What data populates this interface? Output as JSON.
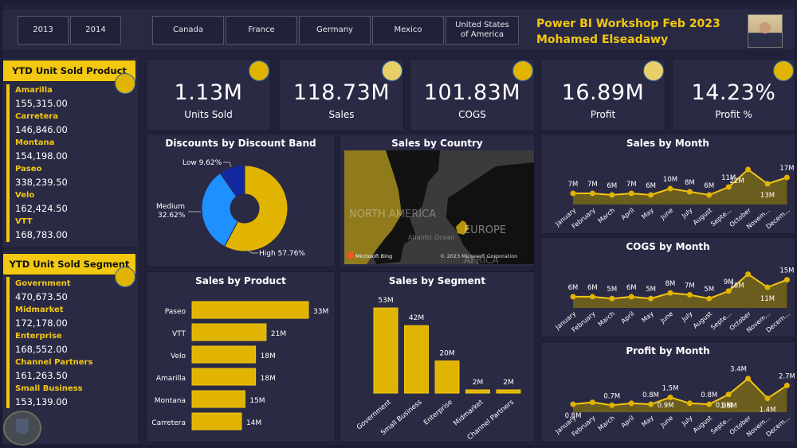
{
  "slicers": {
    "years": [
      "2013",
      "2014"
    ],
    "countries": [
      "Canada",
      "France",
      "Germany",
      "Mexico",
      "United States of America"
    ]
  },
  "header": {
    "title_line1": "Power BI Workshop Feb 2023",
    "title_line2": "Mohamed Elseadawy"
  },
  "colors": {
    "accent": "#f2c811",
    "accent_light": "#e8cf6a",
    "background": "#22213a",
    "card": "#2b2a45",
    "medium_blue": "#1e90ff",
    "low_blue": "#1328a0"
  },
  "kpis": [
    {
      "value": "1.13M",
      "label": "Units Sold"
    },
    {
      "value": "118.73M",
      "label": "Sales"
    },
    {
      "value": "101.83M",
      "label": "COGS"
    },
    {
      "value": "16.89M",
      "label": "Profit"
    },
    {
      "value": "14.23%",
      "label": "Profit %"
    }
  ],
  "ytd_product": {
    "title": "YTD Unit Sold Product",
    "items": [
      {
        "name": "Amarilla",
        "value": "155,315.00"
      },
      {
        "name": "Carretera",
        "value": "146,846.00"
      },
      {
        "name": "Montana",
        "value": "154,198.00"
      },
      {
        "name": "Paseo",
        "value": "338,239.50"
      },
      {
        "name": "Velo",
        "value": "162,424.50"
      },
      {
        "name": "VTT",
        "value": "168,783.00"
      }
    ]
  },
  "ytd_segment": {
    "title": "YTD Unit Sold Segment",
    "items": [
      {
        "name": "Government",
        "value": "470,673.50"
      },
      {
        "name": "Midmarket",
        "value": "172,178.00"
      },
      {
        "name": "Enterprise",
        "value": "168,552.00"
      },
      {
        "name": "Channel Partners",
        "value": "161,263.50"
      },
      {
        "name": "Small Business",
        "value": "153,139.00"
      }
    ]
  },
  "map": {
    "title": "Sales by Country",
    "labels": [
      "NORTH AMERICA",
      "EUROPE",
      "Atlantic Ocean",
      "AFRICA"
    ],
    "attribution_left": "Microsoft Bing",
    "attribution_right": "© 2023 Microsoft Corporation"
  },
  "chart_data": [
    {
      "type": "pie",
      "title": "Discounts by Discount Band",
      "donut": true,
      "slices": [
        {
          "label": "High",
          "value": 57.76,
          "display": "High 57.76%",
          "color": "#e0b400"
        },
        {
          "label": "Medium",
          "value": 32.62,
          "display": "Medium 32.62%",
          "color": "#1e90ff"
        },
        {
          "label": "Low",
          "value": 9.62,
          "display": "Low 9.62%",
          "color": "#1328a0"
        }
      ]
    },
    {
      "type": "bar",
      "orientation": "horizontal",
      "title": "Sales by Product",
      "categories": [
        "Paseo",
        "VTT",
        "Velo",
        "Amarilla",
        "Montana",
        "Carretera"
      ],
      "values": [
        33,
        21,
        18,
        18,
        15,
        14
      ],
      "labels": [
        "33M",
        "21M",
        "18M",
        "18M",
        "15M",
        "14M"
      ],
      "unit": "M"
    },
    {
      "type": "bar",
      "orientation": "vertical",
      "title": "Sales by Segment",
      "categories": [
        "Government",
        "Small Business",
        "Enterprise",
        "Midmarket",
        "Channel Partners"
      ],
      "values": [
        53,
        42,
        20,
        2,
        2
      ],
      "labels": [
        "53M",
        "42M",
        "20M",
        "2M",
        "2M"
      ],
      "unit": "M"
    },
    {
      "type": "area",
      "title": "Sales by Month",
      "categories": [
        "January",
        "February",
        "March",
        "April",
        "May",
        "June",
        "July",
        "August",
        "Septe...",
        "October",
        "Novem...",
        "Decem..."
      ],
      "values": [
        7,
        7,
        6,
        7,
        6,
        10,
        8,
        6,
        11,
        22,
        13,
        17
      ],
      "labels": [
        "7M",
        "7M",
        "6M",
        "7M",
        "6M",
        "10M",
        "8M",
        "6M",
        "11M",
        "22M",
        "13M",
        "17M"
      ]
    },
    {
      "type": "area",
      "title": "COGS by Month",
      "categories": [
        "January",
        "February",
        "March",
        "April",
        "May",
        "June",
        "July",
        "August",
        "Septe...",
        "October",
        "Novem...",
        "Decem..."
      ],
      "values": [
        6,
        6,
        5,
        6,
        5,
        8,
        7,
        5,
        9,
        18,
        11,
        15
      ],
      "labels": [
        "6M",
        "6M",
        "5M",
        "6M",
        "5M",
        "8M",
        "7M",
        "5M",
        "9M",
        "18M",
        "11M",
        "15M"
      ]
    },
    {
      "type": "area",
      "title": "Profit by Month",
      "categories": [
        "January",
        "February",
        "March",
        "April",
        "May",
        "June",
        "July",
        "August",
        "Septe...",
        "October",
        "Novem...",
        "Decem..."
      ],
      "values": [
        0.8,
        1.0,
        0.7,
        0.9,
        0.8,
        1.5,
        0.9,
        0.8,
        1.8,
        3.4,
        1.4,
        2.7
      ],
      "labels": [
        "0.8M",
        "",
        "0.7M",
        "",
        "0.8M",
        "1.5M",
        "",
        "0.8M",
        "1.8M",
        "3.4M",
        "1.4M",
        "2.7M"
      ],
      "extra_labels": [
        "0.9M",
        "0.9M"
      ]
    }
  ]
}
